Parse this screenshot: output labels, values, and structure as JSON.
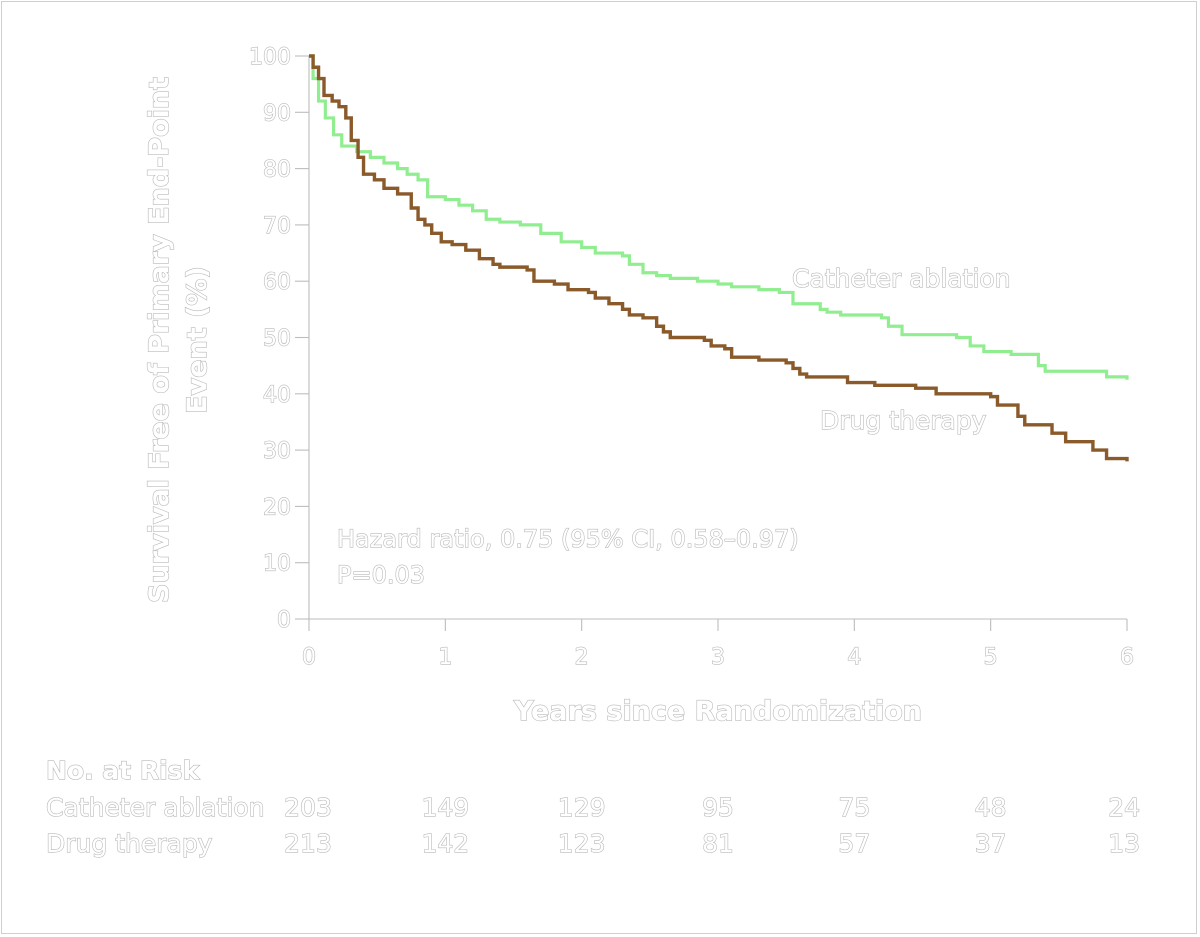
{
  "chart_data": {
    "type": "line",
    "title": "",
    "xlabel": "Years since Randomization",
    "ylabel": "Survival Free of Primary End-Point Event (%)",
    "xlim": [
      0,
      6
    ],
    "ylim": [
      0,
      100
    ],
    "xticks": [
      "0",
      "1",
      "2",
      "3",
      "4",
      "5",
      "6"
    ],
    "yticks": [
      "0",
      "10",
      "20",
      "30",
      "40",
      "50",
      "60",
      "70",
      "80",
      "90",
      "100"
    ],
    "step": true,
    "grid": false,
    "series": [
      {
        "name": "Catheter ablation",
        "color": "#90ee90",
        "points": [
          [
            0,
            100
          ],
          [
            0.03,
            96
          ],
          [
            0.07,
            92
          ],
          [
            0.12,
            89
          ],
          [
            0.18,
            86
          ],
          [
            0.24,
            84
          ],
          [
            0.35,
            83
          ],
          [
            0.45,
            82
          ],
          [
            0.55,
            81
          ],
          [
            0.65,
            80
          ],
          [
            0.72,
            79
          ],
          [
            0.8,
            78
          ],
          [
            0.87,
            75
          ],
          [
            1.0,
            74.5
          ],
          [
            1.1,
            73.5
          ],
          [
            1.2,
            72.5
          ],
          [
            1.3,
            71
          ],
          [
            1.4,
            70.5
          ],
          [
            1.55,
            70
          ],
          [
            1.7,
            68.5
          ],
          [
            1.85,
            67
          ],
          [
            2.0,
            66
          ],
          [
            2.1,
            65
          ],
          [
            2.3,
            64.5
          ],
          [
            2.35,
            63
          ],
          [
            2.45,
            61.5
          ],
          [
            2.55,
            61
          ],
          [
            2.65,
            60.5
          ],
          [
            2.85,
            60
          ],
          [
            3.0,
            59.5
          ],
          [
            3.1,
            59
          ],
          [
            3.3,
            58.5
          ],
          [
            3.45,
            58
          ],
          [
            3.55,
            56
          ],
          [
            3.75,
            55
          ],
          [
            3.8,
            54.5
          ],
          [
            3.9,
            54
          ],
          [
            4.2,
            53.5
          ],
          [
            4.25,
            52
          ],
          [
            4.35,
            50.5
          ],
          [
            4.75,
            50
          ],
          [
            4.85,
            48.5
          ],
          [
            4.95,
            47.5
          ],
          [
            5.15,
            47
          ],
          [
            5.35,
            45
          ],
          [
            5.4,
            44
          ],
          [
            5.85,
            43
          ],
          [
            6.0,
            42.5
          ]
        ]
      },
      {
        "name": "Drug therapy",
        "color": "#8b5a2b",
        "points": [
          [
            0,
            100
          ],
          [
            0.03,
            98
          ],
          [
            0.07,
            96
          ],
          [
            0.11,
            93
          ],
          [
            0.17,
            92
          ],
          [
            0.22,
            91
          ],
          [
            0.27,
            89
          ],
          [
            0.31,
            85
          ],
          [
            0.36,
            82
          ],
          [
            0.4,
            79
          ],
          [
            0.48,
            78
          ],
          [
            0.55,
            76.5
          ],
          [
            0.65,
            75.5
          ],
          [
            0.75,
            73
          ],
          [
            0.8,
            71
          ],
          [
            0.85,
            70
          ],
          [
            0.9,
            68.5
          ],
          [
            0.97,
            67
          ],
          [
            1.05,
            66.5
          ],
          [
            1.15,
            65.5
          ],
          [
            1.25,
            64
          ],
          [
            1.35,
            63
          ],
          [
            1.4,
            62.5
          ],
          [
            1.6,
            62
          ],
          [
            1.65,
            60
          ],
          [
            1.8,
            59.5
          ],
          [
            1.9,
            58.5
          ],
          [
            2.05,
            58
          ],
          [
            2.1,
            57
          ],
          [
            2.2,
            56
          ],
          [
            2.3,
            55
          ],
          [
            2.35,
            54
          ],
          [
            2.45,
            53.5
          ],
          [
            2.55,
            52
          ],
          [
            2.6,
            51
          ],
          [
            2.65,
            50
          ],
          [
            2.9,
            49.5
          ],
          [
            2.95,
            48.5
          ],
          [
            3.05,
            48
          ],
          [
            3.1,
            46.5
          ],
          [
            3.3,
            46
          ],
          [
            3.5,
            45.5
          ],
          [
            3.55,
            44.5
          ],
          [
            3.6,
            43.5
          ],
          [
            3.65,
            43
          ],
          [
            3.95,
            42
          ],
          [
            4.15,
            41.5
          ],
          [
            4.45,
            41
          ],
          [
            4.6,
            40
          ],
          [
            5.0,
            39.5
          ],
          [
            5.05,
            38
          ],
          [
            5.2,
            36
          ],
          [
            5.25,
            34.5
          ],
          [
            5.45,
            33
          ],
          [
            5.55,
            31.5
          ],
          [
            5.75,
            30
          ],
          [
            5.85,
            28.5
          ],
          [
            6.0,
            28
          ]
        ]
      }
    ],
    "annotations": [
      "Hazard ratio, 0.75 (95% CI, 0.58–0.97)",
      "P=0.03"
    ],
    "risk_table": {
      "title": "No. at Risk",
      "times": [
        0,
        1,
        2,
        3,
        4,
        5,
        6
      ],
      "rows": [
        {
          "label": "Catheter ablation",
          "values": [
            "203",
            "149",
            "129",
            "95",
            "75",
            "48",
            "24"
          ]
        },
        {
          "label": "Drug therapy",
          "values": [
            "213",
            "142",
            "123",
            "81",
            "57",
            "37",
            "13"
          ]
        }
      ]
    }
  }
}
